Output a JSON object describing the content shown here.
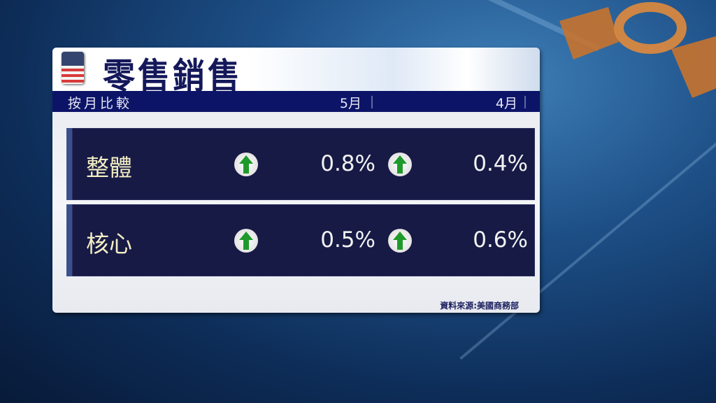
{
  "title": "零售銷售",
  "header": {
    "label": "按月比較",
    "col1": "5月",
    "col2": "4月"
  },
  "rows": [
    {
      "label": "整體",
      "may": "0.8%",
      "may_trend": "up",
      "apr": "0.4%",
      "apr_trend": "up"
    },
    {
      "label": "核心",
      "may": "0.5%",
      "may_trend": "up",
      "apr": "0.6%",
      "apr_trend": "up"
    }
  ],
  "source": "資料來源:美國商務部",
  "colors": {
    "header": "#0c1468",
    "row": "#171a45",
    "arrow_up": "#1f9a2a",
    "label": "#f3eec4"
  }
}
